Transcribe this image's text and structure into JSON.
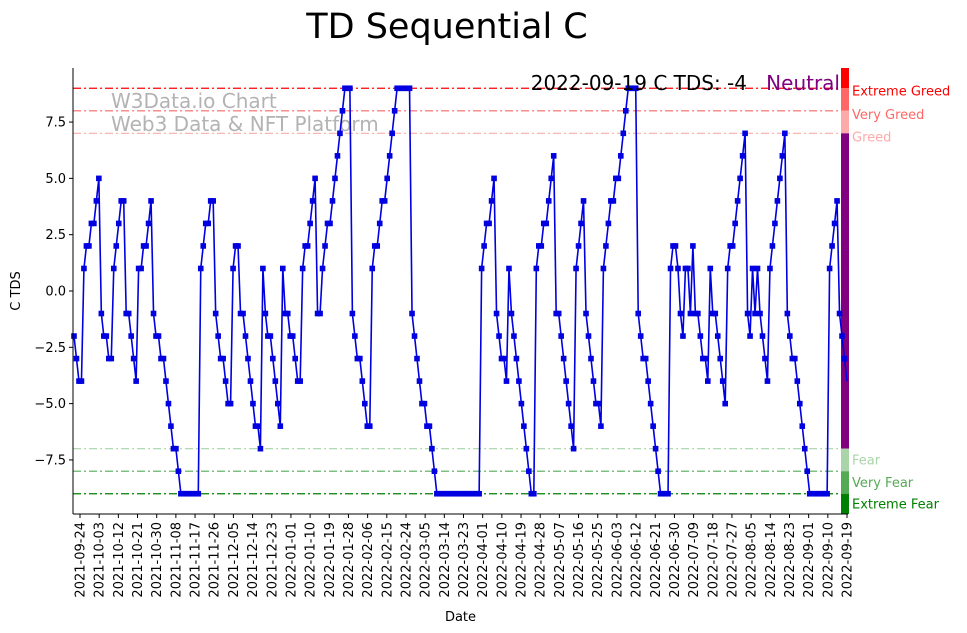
{
  "chart_data": {
    "type": "line",
    "title": "TD Sequential C",
    "xlabel": "Date",
    "ylabel": "C TDS",
    "ylim": [
      -9.9,
      9.9
    ],
    "yticks": [
      -7.5,
      -5.0,
      -2.5,
      0.0,
      2.5,
      5.0,
      7.5
    ],
    "ytick_labels": [
      "−7.5",
      "−5.0",
      "−2.5",
      "0.0",
      "2.5",
      "5.0",
      "7.5"
    ],
    "date_labels": [
      "2021-09-24",
      "2021-10-03",
      "2021-10-12",
      "2021-10-21",
      "2021-10-30",
      "2021-11-08",
      "2021-11-17",
      "2021-11-26",
      "2021-12-05",
      "2021-12-14",
      "2021-12-23",
      "2022-01-01",
      "2022-01-10",
      "2022-01-19",
      "2022-01-28",
      "2022-02-06",
      "2022-02-15",
      "2022-02-24",
      "2022-03-05",
      "2022-03-14",
      "2022-03-23",
      "2022-04-01",
      "2022-04-10",
      "2022-04-19",
      "2022-04-28",
      "2022-05-07",
      "2022-05-16",
      "2022-05-25",
      "2022-06-03",
      "2022-06-12",
      "2022-06-21",
      "2022-06-30",
      "2022-07-09",
      "2022-07-18",
      "2022-07-27",
      "2022-08-05",
      "2022-08-14",
      "2022-08-23",
      "2022-09-01",
      "2022-09-10",
      "2022-09-19"
    ],
    "series": [
      {
        "name": "C TDS",
        "color": "#0000e0",
        "marker": "square",
        "values": [
          -2,
          -3,
          -4,
          -4,
          1,
          2,
          2,
          3,
          3,
          4,
          5,
          -1,
          -2,
          -2,
          -3,
          -3,
          1,
          2,
          3,
          4,
          4,
          -1,
          -1,
          -2,
          -3,
          -4,
          1,
          1,
          2,
          2,
          3,
          4,
          -1,
          -2,
          -2,
          -3,
          -3,
          -4,
          -5,
          -6,
          -7,
          -7,
          -8,
          -9,
          -9,
          -9,
          -9,
          -9,
          -9,
          -9,
          -9,
          1,
          2,
          3,
          3,
          4,
          4,
          -1,
          -2,
          -3,
          -3,
          -4,
          -5,
          -5,
          1,
          2,
          2,
          -1,
          -1,
          -2,
          -3,
          -4,
          -5,
          -6,
          -6,
          -7,
          1,
          -1,
          -2,
          -2,
          -3,
          -4,
          -5,
          -6,
          1,
          -1,
          -1,
          -2,
          -2,
          -3,
          -4,
          -4,
          1,
          2,
          2,
          3,
          4,
          5,
          -1,
          -1,
          1,
          2,
          3,
          3,
          4,
          5,
          6,
          7,
          8,
          9,
          9,
          9,
          -1,
          -2,
          -3,
          -3,
          -4,
          -5,
          -6,
          -6,
          1,
          2,
          2,
          3,
          4,
          4,
          5,
          6,
          7,
          8,
          9,
          9,
          9,
          9,
          9,
          9,
          -1,
          -2,
          -3,
          -4,
          -5,
          -5,
          -6,
          -6,
          -7,
          -8,
          -9,
          -9,
          -9,
          -9,
          -9,
          -9,
          -9,
          -9,
          -9,
          -9,
          -9,
          -9,
          -9,
          -9,
          -9,
          -9,
          -9,
          -9,
          1,
          2,
          3,
          3,
          4,
          5,
          -1,
          -2,
          -3,
          -3,
          -4,
          1,
          -1,
          -2,
          -3,
          -4,
          -5,
          -6,
          -7,
          -8,
          -9,
          -9,
          1,
          2,
          2,
          3,
          3,
          4,
          5,
          6,
          -1,
          -1,
          -2,
          -3,
          -4,
          -5,
          -6,
          -7,
          1,
          2,
          3,
          4,
          -1,
          -2,
          -3,
          -4,
          -5,
          -5,
          -6,
          1,
          2,
          3,
          4,
          4,
          5,
          5,
          6,
          7,
          8,
          9,
          9,
          9,
          9,
          -1,
          -2,
          -3,
          -3,
          -4,
          -5,
          -6,
          -7,
          -8,
          -9,
          -9,
          -9,
          -9,
          1,
          2,
          2,
          1,
          -1,
          -2,
          1,
          1,
          -1,
          2,
          -1,
          -1,
          -2,
          -3,
          -3,
          -4,
          1,
          -1,
          -1,
          -2,
          -3,
          -4,
          -5,
          1,
          2,
          2,
          3,
          4,
          5,
          6,
          7,
          -1,
          -2,
          1,
          -1,
          1,
          -1,
          -2,
          -3,
          -4,
          1,
          2,
          3,
          4,
          5,
          6,
          7,
          -1,
          -2,
          -3,
          -3,
          -4,
          -5,
          -6,
          -7,
          -8,
          -9,
          -9,
          -9,
          -9,
          -9,
          -9,
          -9,
          -9,
          1,
          2,
          3,
          4,
          -1,
          -2,
          -3,
          -4
        ]
      }
    ],
    "thresholds": [
      {
        "label": "Extreme Greed",
        "value": 9,
        "color": "#ff0000"
      },
      {
        "label": "Very Greed",
        "value": 8,
        "color": "#ff6666"
      },
      {
        "label": "Greed",
        "value": 7,
        "color": "#ffaaaa"
      },
      {
        "label": "Fear",
        "value": -7,
        "color": "#aad5aa"
      },
      {
        "label": "Very Fear",
        "value": -8,
        "color": "#55aa55"
      },
      {
        "label": "Extreme Fear",
        "value": -9,
        "color": "#008000"
      }
    ],
    "neutral_color": "#800080",
    "watermark": [
      "W3Data.io Chart",
      "Web3 Data & NFT Platform"
    ],
    "annotation": {
      "text": "2022-09-19 C TDS: -4",
      "status": "Neutral",
      "status_color": "#800080"
    }
  }
}
